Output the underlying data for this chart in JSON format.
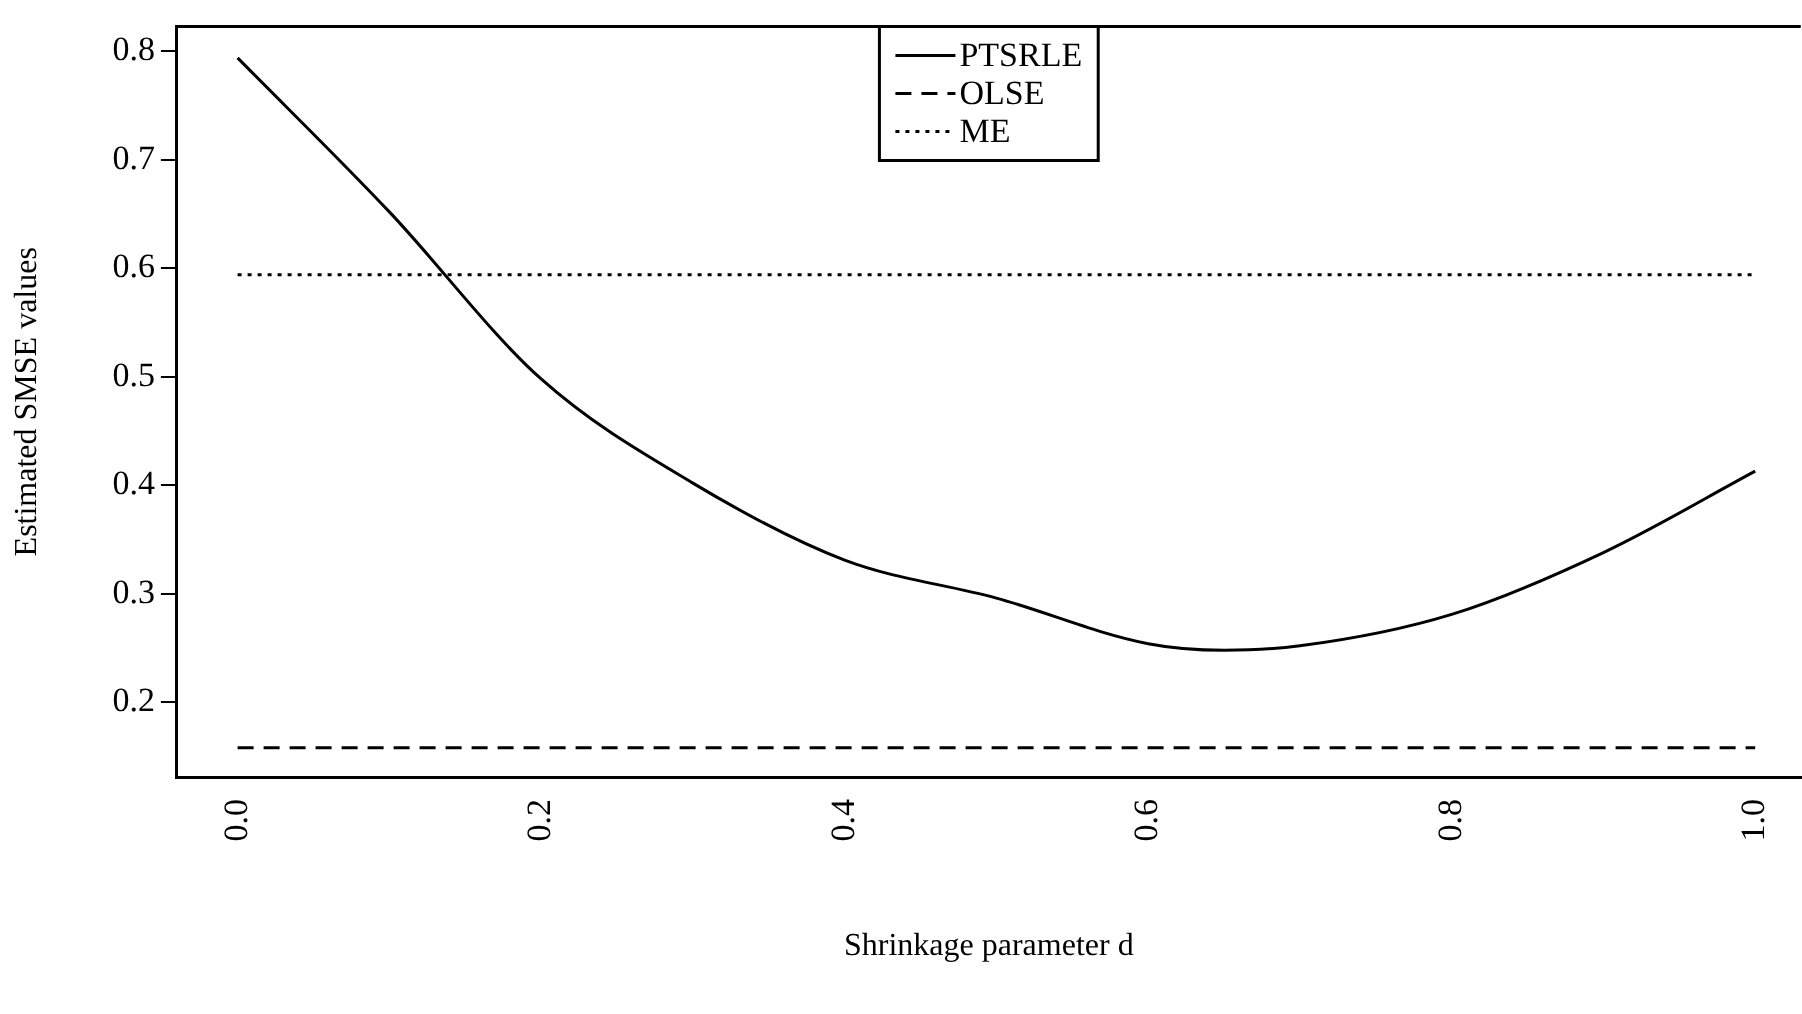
{
  "chart_data": {
    "type": "line",
    "xlabel": "Shrinkage parameter d",
    "ylabel": "Estimated SMSE values",
    "xlim": [
      -0.04,
      1.03
    ],
    "ylim": [
      0.131,
      0.823
    ],
    "xticks": [
      {
        "value": 0,
        "label": "0.0"
      },
      0.2,
      0.4,
      0.6,
      0.8,
      {
        "value": 1,
        "label": "1.0"
      }
    ],
    "yticks": [
      0.2,
      0.3,
      0.4,
      0.5,
      0.6,
      0.7,
      0.8
    ],
    "grid": false,
    "legend": "top",
    "marker": "none",
    "series": [
      {
        "name": "PTSRLE",
        "color": "#000000",
        "line_style": "solid",
        "x": [
          0,
          0.1,
          0.2,
          0.3,
          0.4,
          0.5,
          0.6,
          0.65,
          0.7,
          0.8,
          0.9,
          1.0
        ],
        "values": [
          0.794,
          0.652,
          0.498,
          0.402,
          0.331,
          0.296,
          0.254,
          0.248,
          0.252,
          0.281,
          0.338,
          0.413
        ]
      },
      {
        "name": "OLSE",
        "color": "#000000",
        "line_style": "dashed",
        "x": [
          0,
          1
        ],
        "values": [
          0.158,
          0.158
        ]
      },
      {
        "name": "ME",
        "color": "#000000",
        "line_style": "dotted",
        "x": [
          0,
          1
        ],
        "values": [
          0.594,
          0.594
        ]
      }
    ]
  }
}
